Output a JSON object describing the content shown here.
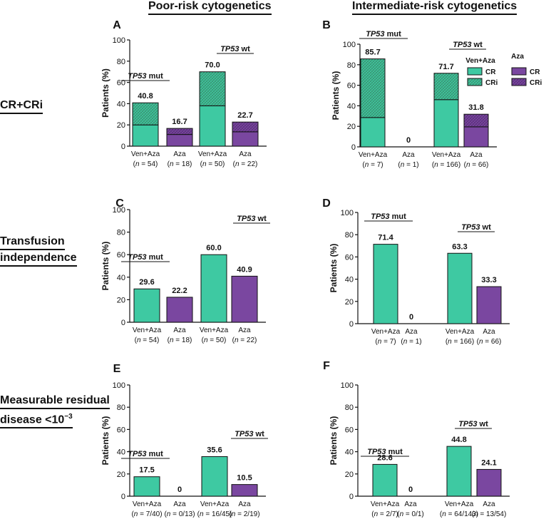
{
  "headers": {
    "poor": "Poor-risk cytogenetics",
    "intermediate": "Intermediate-risk cytogenetics"
  },
  "row_labels": {
    "crcri": "CR+CRi",
    "ti_line1": "Transfusion",
    "ti_line2": "independence",
    "mrd_line1": "Measurable residual",
    "mrd_line2": "disease <10",
    "mrd_sup": "−3"
  },
  "colors": {
    "ven": "#3ec9a2",
    "aza": "#7a47a0",
    "ven_hatch_bg": "#3a8f6e",
    "aza_hatch_bg": "#5a2f7a"
  },
  "legend": {
    "ven_title": "Ven+Aza",
    "aza_title": "Aza",
    "cr": "CR",
    "cri": "CRi"
  },
  "chart_data": [
    {
      "panel": "A",
      "type": "bar",
      "stacked": true,
      "ylabel": "Patients (%)",
      "ylim": [
        0,
        100
      ],
      "yticks": [
        0,
        20,
        40,
        60,
        80,
        100
      ],
      "categories": [
        "Ven+Aza",
        "Aza",
        "Ven+Aza",
        "Aza"
      ],
      "n_labels": [
        "(n = 54)",
        "(n = 18)",
        "(n = 50)",
        "(n = 22)"
      ],
      "arms": [
        "ven",
        "aza",
        "ven",
        "aza"
      ],
      "groups": [
        {
          "label": "TP53",
          "suffix": " mut",
          "bars": [
            0,
            1
          ]
        },
        {
          "label": "TP53",
          "suffix": " wt",
          "bars": [
            2,
            3
          ]
        }
      ],
      "series": [
        {
          "name": "CR",
          "values": [
            20.0,
            11.0,
            38.0,
            13.5
          ]
        },
        {
          "name": "CRi",
          "values": [
            20.8,
            5.7,
            32.0,
            9.2
          ]
        }
      ],
      "totals": [
        40.8,
        16.7,
        70.0,
        22.7
      ],
      "total_labels": [
        "40.8",
        "16.7",
        "70.0",
        "22.7"
      ]
    },
    {
      "panel": "B",
      "type": "bar",
      "stacked": true,
      "ylabel": "Patients (%)",
      "ylim": [
        0,
        100
      ],
      "yticks": [
        0,
        20,
        40,
        60,
        80,
        100
      ],
      "categories": [
        "Ven+Aza",
        "Aza",
        "Ven+Aza",
        "Aza"
      ],
      "n_labels": [
        "(n = 7)",
        "(n = 1)",
        "(n = 166)",
        "(n = 66)"
      ],
      "arms": [
        "ven",
        "aza",
        "ven",
        "aza"
      ],
      "groups": [
        {
          "label": "TP53",
          "suffix": " mut",
          "bars": [
            0,
            1
          ]
        },
        {
          "label": "TP53",
          "suffix": " wt",
          "bars": [
            2,
            3
          ]
        }
      ],
      "series": [
        {
          "name": "CR",
          "values": [
            28.6,
            0,
            46.0,
            19.5
          ]
        },
        {
          "name": "CRi",
          "values": [
            57.1,
            0,
            25.7,
            12.3
          ]
        }
      ],
      "totals": [
        85.7,
        0,
        71.7,
        31.8
      ],
      "total_labels": [
        "85.7",
        "0",
        "71.7",
        "31.8"
      ],
      "legend": true
    },
    {
      "panel": "C",
      "type": "bar",
      "stacked": false,
      "ylabel": "Patients (%)",
      "ylim": [
        0,
        100
      ],
      "yticks": [
        0,
        20,
        40,
        60,
        80,
        100
      ],
      "categories": [
        "Ven+Aza",
        "Aza",
        "Ven+Aza",
        "Aza"
      ],
      "n_labels": [
        "(n = 54)",
        "(n = 18)",
        "(n = 50)",
        "(n = 22)"
      ],
      "arms": [
        "ven",
        "aza",
        "ven",
        "aza"
      ],
      "groups": [
        {
          "label": "TP53",
          "suffix": " mut",
          "bars": [
            0,
            1
          ]
        },
        {
          "label": "TP53",
          "suffix": " wt",
          "bars": [
            2,
            3
          ]
        }
      ],
      "totals": [
        29.6,
        22.2,
        60.0,
        40.9
      ],
      "total_labels": [
        "29.6",
        "22.2",
        "60.0",
        "40.9"
      ]
    },
    {
      "panel": "D",
      "type": "bar",
      "stacked": false,
      "ylabel": "Patients (%)",
      "ylim": [
        0,
        100
      ],
      "yticks": [
        0,
        20,
        40,
        60,
        80,
        100
      ],
      "categories": [
        "Ven+Aza",
        "Aza",
        "Ven+Aza",
        "Aza"
      ],
      "n_labels": [
        "(n = 7)",
        "(n = 1)",
        "(n = 166)",
        "(n = 66)"
      ],
      "arms": [
        "ven",
        "aza",
        "ven",
        "aza"
      ],
      "groups": [
        {
          "label": "TP53",
          "suffix": " mut",
          "bars": [
            0,
            1
          ]
        },
        {
          "label": "TP53",
          "suffix": " wt",
          "bars": [
            2,
            3
          ]
        }
      ],
      "totals": [
        71.4,
        0,
        63.3,
        33.3
      ],
      "total_labels": [
        "71.4",
        "0",
        "63.3",
        "33.3"
      ]
    },
    {
      "panel": "E",
      "type": "bar",
      "stacked": false,
      "ylabel": "Patients (%)",
      "ylim": [
        0,
        100
      ],
      "yticks": [
        0,
        20,
        40,
        60,
        80,
        100
      ],
      "categories": [
        "Ven+Aza",
        "Aza",
        "Ven+Aza",
        "Aza"
      ],
      "n_labels": [
        "(n = 7/40)",
        "(n = 0/13)",
        "(n = 16/45)",
        "(n = 2/19)"
      ],
      "arms": [
        "ven",
        "aza",
        "ven",
        "aza"
      ],
      "groups": [
        {
          "label": "TP53",
          "suffix": " mut",
          "bars": [
            0,
            1
          ]
        },
        {
          "label": "TP53",
          "suffix": " wt",
          "bars": [
            2,
            3
          ]
        }
      ],
      "totals": [
        17.5,
        0,
        35.6,
        10.5
      ],
      "total_labels": [
        "17.5",
        "0",
        "35.6",
        "10.5"
      ]
    },
    {
      "panel": "F",
      "type": "bar",
      "stacked": false,
      "ylabel": "Patients (%)",
      "ylim": [
        0,
        100
      ],
      "yticks": [
        0,
        20,
        40,
        60,
        80,
        100
      ],
      "categories": [
        "Ven+Aza",
        "Aza",
        "Ven+Aza",
        "Aza"
      ],
      "n_labels": [
        "(n = 2/7)",
        "(n = 0/1)",
        "(n = 64/143)",
        "(n = 13/54)"
      ],
      "arms": [
        "ven",
        "aza",
        "ven",
        "aza"
      ],
      "groups": [
        {
          "label": "TP53",
          "suffix": " mut",
          "bars": [
            0,
            1
          ]
        },
        {
          "label": "TP53",
          "suffix": " wt",
          "bars": [
            2,
            3
          ]
        }
      ],
      "totals": [
        28.6,
        0,
        44.8,
        24.1
      ],
      "total_labels": [
        "28.6",
        "0",
        "44.8",
        "24.1"
      ]
    }
  ]
}
